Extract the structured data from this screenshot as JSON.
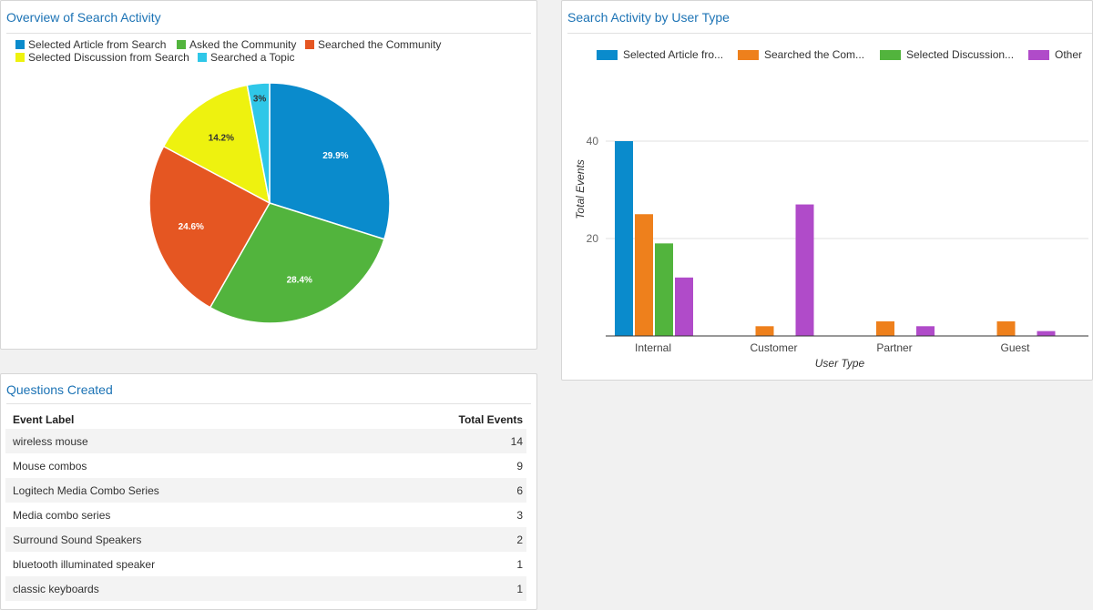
{
  "colors": {
    "blue": "#0a8bcc",
    "green": "#52b43d",
    "orange": "#e55622",
    "yellow": "#eef20f",
    "cyan": "#2fc7e8",
    "bar_blue": "#0a8bcc",
    "bar_orange": "#ee801c",
    "bar_green": "#52b43d",
    "bar_purple": "#b04bc9",
    "title_blue": "#1c73b5"
  },
  "pie_panel": {
    "title": "Overview of Search Activity",
    "legend": [
      {
        "label": "Selected Article from Search",
        "color": "#0a8bcc"
      },
      {
        "label": "Asked the Community",
        "color": "#52b43d"
      },
      {
        "label": "Searched the Community",
        "color": "#e55622"
      },
      {
        "label": "Selected Discussion from Search",
        "color": "#eef20f"
      },
      {
        "label": "Searched a Topic",
        "color": "#2fc7e8"
      }
    ]
  },
  "bar_panel": {
    "title": "Search Activity by User Type",
    "legend": [
      {
        "label": "Selected Article fro...",
        "color": "#0a8bcc"
      },
      {
        "label": "Searched the Com...",
        "color": "#ee801c"
      },
      {
        "label": "Selected Discussion...",
        "color": "#52b43d"
      },
      {
        "label": "Other",
        "color": "#b04bc9"
      }
    ]
  },
  "chart_data": [
    {
      "type": "pie",
      "title": "Overview of Search Activity",
      "labels": [
        "Selected Article from Search",
        "Asked the Community",
        "Searched the Community",
        "Selected Discussion from Search",
        "Searched a Topic"
      ],
      "values": [
        29.9,
        28.4,
        24.6,
        14.2,
        3
      ],
      "value_labels": [
        "29.9%",
        "28.4%",
        "24.6%",
        "14.2%",
        "3%"
      ],
      "colors": [
        "#0a8bcc",
        "#52b43d",
        "#e55622",
        "#eef20f",
        "#2fc7e8"
      ],
      "legend": "top"
    },
    {
      "type": "bar",
      "title": "Search Activity by User Type",
      "categories": [
        "Internal",
        "Customer",
        "Partner",
        "Guest"
      ],
      "series": [
        {
          "name": "Selected Article fro...",
          "color": "#0a8bcc",
          "values": [
            40,
            0,
            0,
            0
          ]
        },
        {
          "name": "Searched the Com...",
          "color": "#ee801c",
          "values": [
            25,
            2,
            3,
            3
          ]
        },
        {
          "name": "Selected Discussion...",
          "color": "#52b43d",
          "values": [
            19,
            0,
            0,
            0
          ]
        },
        {
          "name": "Other",
          "color": "#b04bc9",
          "values": [
            12,
            27,
            2,
            1
          ]
        }
      ],
      "xlabel": "User Type",
      "ylabel": "Total Events",
      "yticks": [
        20,
        40
      ],
      "ylim": [
        0,
        40
      ],
      "grid": true,
      "legend": "top"
    }
  ],
  "table": {
    "title": "Questions Created",
    "headers": {
      "label": "Event Label",
      "total": "Total Events"
    },
    "rows": [
      {
        "label": "wireless mouse",
        "total": "14"
      },
      {
        "label": "Mouse combos",
        "total": "9"
      },
      {
        "label": "Logitech Media Combo Series",
        "total": "6"
      },
      {
        "label": "Media combo series",
        "total": "3"
      },
      {
        "label": "Surround Sound Speakers",
        "total": "2"
      },
      {
        "label": "bluetooth illuminated speaker",
        "total": "1"
      },
      {
        "label": "classic keyboards",
        "total": "1"
      }
    ]
  }
}
